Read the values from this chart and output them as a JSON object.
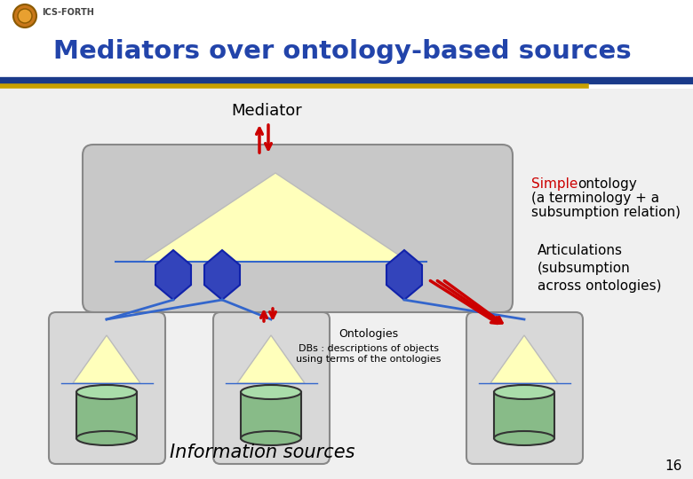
{
  "title": "Mediators over ontology-based sources",
  "subtitle": "ICS-FORTH",
  "slide_bg": "#ffffff",
  "content_bg": "#f0f0f0",
  "header_blue_line": "#1a3a8a",
  "header_gold_line": "#c8a000",
  "title_color": "#2244aa",
  "mediator_box_color": "#c8c8c8",
  "mediator_box_edge": "#888888",
  "source_box_color": "#d8d8d8",
  "source_box_edge": "#888888",
  "triangle_fill": "#ffffbb",
  "triangle_edge": "#bbbbbb",
  "diamond_fill": "#3344bb",
  "diamond_edge": "#1122aa",
  "blue_line_color": "#3366cc",
  "red_arrow_color": "#cc0000",
  "cyl_body": "#88bb88",
  "cyl_top": "#aaddaa",
  "cyl_edge": "#333333",
  "mediator_label": "Mediator",
  "info_sources_label": "Information sources",
  "ontologies_label": "Ontologies",
  "dbs_label": "DBs : descriptions of objects\nusing terms of the ontologies",
  "simple_red": "Simple",
  "simple_black": " ontology\n(a terminology + a\nsubsumption relation)",
  "articulations_text": "Articulations\n(subsumption\nacross ontologies)",
  "simple_color": "#cc0000",
  "page_number": "16",
  "logo_outer": "#c8771a",
  "logo_inner": "#e8a030",
  "logo_edge": "#8b5a00"
}
